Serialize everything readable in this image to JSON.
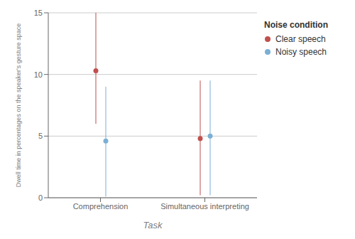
{
  "chart_data": {
    "type": "scatter",
    "xlabel": "Task",
    "ylabel": "Dwell time in percentages on the speaker's gesture space",
    "categories": [
      "Comprehension",
      "Simultaneous interpreting"
    ],
    "series": [
      {
        "name": "Clear speech",
        "color": "#c0504d",
        "marker": "circle",
        "values": [
          10.3,
          4.8
        ],
        "ci_low": [
          6.0,
          0.2
        ],
        "ci_high": [
          15.0,
          9.5
        ]
      },
      {
        "name": "Noisy speech",
        "color": "#7bafd4",
        "marker": "circle",
        "values": [
          4.6,
          5.0
        ],
        "ci_low": [
          0.1,
          0.2
        ],
        "ci_high": [
          9.0,
          9.5
        ]
      }
    ],
    "ylim": [
      0,
      15
    ],
    "yticks": [
      0,
      5,
      10,
      15
    ],
    "grid": true,
    "legend": "right",
    "legend_title": "Noise condition"
  }
}
